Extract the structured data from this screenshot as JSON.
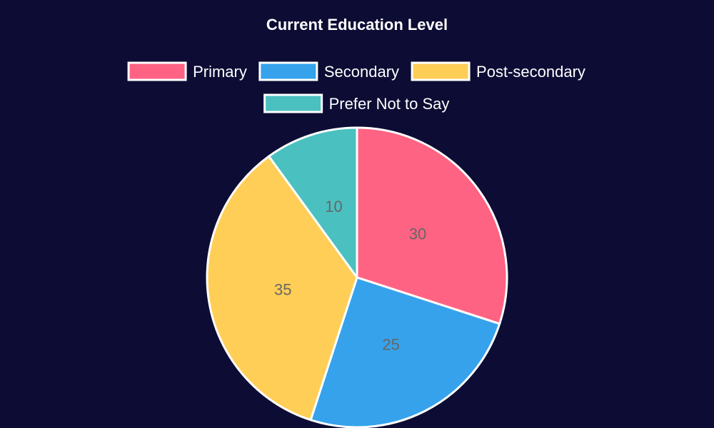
{
  "chart_data": {
    "type": "pie",
    "title": "Current Education Level",
    "legend_position": "top",
    "categories": [
      "Primary",
      "Secondary",
      "Post-secondary",
      "Prefer Not to Say"
    ],
    "values": [
      30,
      25,
      35,
      10
    ],
    "colors": [
      "#ff6384",
      "#36a2eb",
      "#ffce56",
      "#4bc0c0"
    ],
    "border_color": "#ffffff",
    "background_color": "#0c0c34",
    "label_color": "#666666"
  }
}
